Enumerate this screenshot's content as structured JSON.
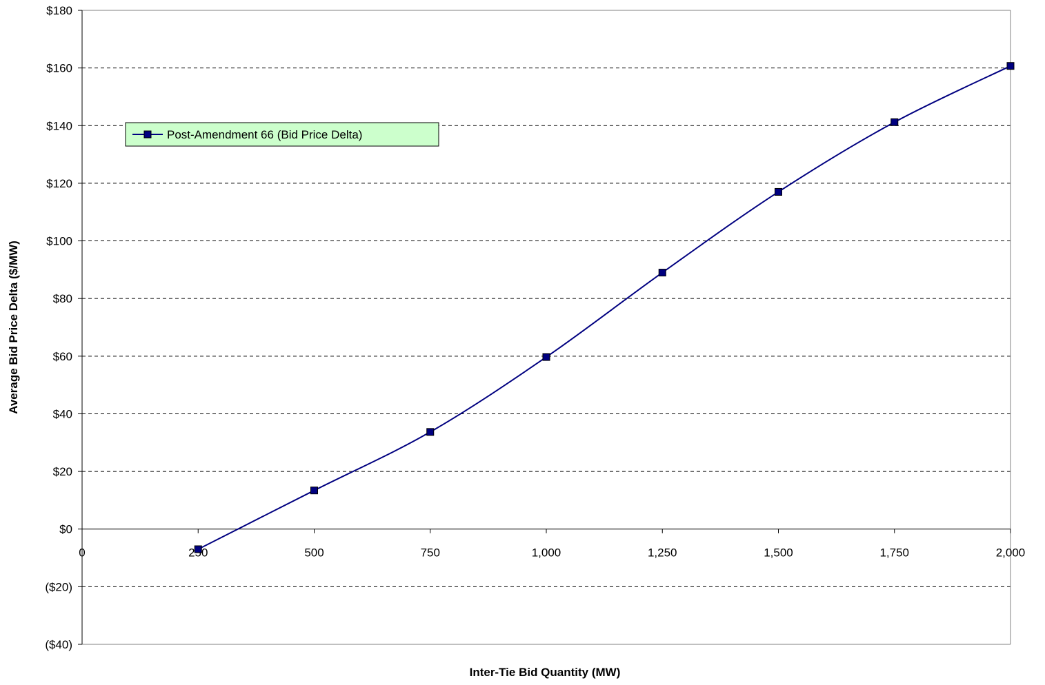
{
  "chart_data": {
    "type": "line",
    "xlabel": "Inter-Tie Bid Quantity (MW)",
    "ylabel": "Average Bid Price Delta ($/MW)",
    "xlim": [
      0,
      2000
    ],
    "ylim": [
      -40,
      180
    ],
    "x_ticks": [
      0,
      250,
      500,
      750,
      1000,
      1250,
      1500,
      1750,
      2000
    ],
    "x_tick_labels": [
      "0",
      "250",
      "500",
      "750",
      "1,000",
      "1,250",
      "1,500",
      "1,750",
      "2,000"
    ],
    "y_ticks": [
      -40,
      -20,
      0,
      20,
      40,
      60,
      80,
      100,
      120,
      140,
      160,
      180
    ],
    "y_tick_labels": [
      "($40)",
      "($20)",
      "$0",
      "$20",
      "$40",
      "$60",
      "$80",
      "$100",
      "$120",
      "$140",
      "$160",
      "$180"
    ],
    "grid": "horizontal dashed",
    "legend_position": "upper-left",
    "series": [
      {
        "name": "Post-Amendment 66 (Bid Price Delta)",
        "color": "#000080",
        "marker": "square",
        "x": [
          250,
          500,
          750,
          1000,
          1250,
          1500,
          1750,
          2000
        ],
        "y": [
          -7,
          13.4,
          33.7,
          59.7,
          89,
          117,
          141.2,
          160.7
        ]
      }
    ]
  }
}
